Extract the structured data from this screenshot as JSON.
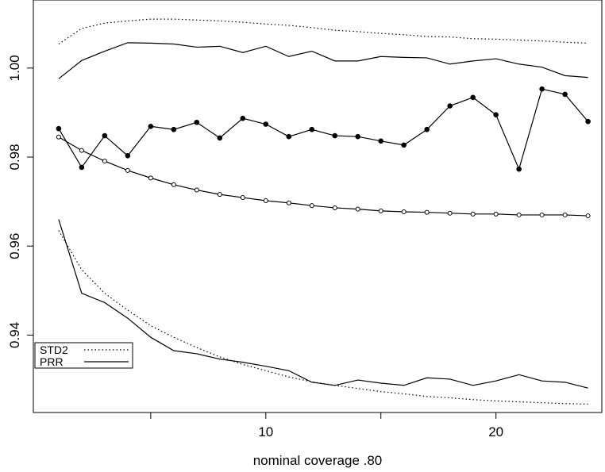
{
  "chart_data": {
    "type": "line",
    "x_label": "nominal coverage .80",
    "x": [
      1,
      2,
      3,
      4,
      5,
      6,
      7,
      8,
      9,
      10,
      11,
      12,
      13,
      14,
      15,
      16,
      17,
      18,
      19,
      20,
      21,
      22,
      23,
      24
    ],
    "xlim": [
      -0.1,
      24.6
    ],
    "xticks": [
      10,
      20
    ],
    "xticks_minor": [
      5,
      15
    ],
    "ylim": [
      0.9226,
      1.0153
    ],
    "yticks": [
      0.94,
      0.96,
      0.98,
      {
        "value": 1,
        "label": "1.00"
      }
    ],
    "legend": "bottom-left",
    "series": [
      {
        "name": "STD2",
        "color": "#000000",
        "dash": "dotted",
        "values": [
          0.9635,
          0.9547,
          0.9494,
          0.9456,
          0.9421,
          0.9395,
          0.9372,
          0.9351,
          0.9334,
          0.932,
          0.9306,
          0.9295,
          0.9287,
          0.928,
          0.9273,
          0.9268,
          0.9262,
          0.9259,
          0.9255,
          0.9252,
          0.925,
          0.9248,
          0.9246,
          0.9245
        ]
      },
      {
        "name": "PRR",
        "color": "#000000",
        "dash": "solid",
        "values": [
          0.966,
          0.9494,
          0.9473,
          0.9438,
          0.9395,
          0.9365,
          0.9358,
          0.9346,
          0.9339,
          0.933,
          0.932,
          0.9294,
          0.9287,
          0.9299,
          0.9292,
          0.9287,
          0.9304,
          0.9301,
          0.9287,
          0.9297,
          0.9311,
          0.9297,
          0.9294,
          0.9281
        ]
      },
      {
        "color": "#000000",
        "dash": "dotted",
        "values": [
          1.0054,
          1.0089,
          1.0101,
          1.0106,
          1.011,
          1.011,
          1.0108,
          1.0106,
          1.0103,
          1.0099,
          1.0096,
          1.0091,
          1.0085,
          1.0082,
          1.0078,
          1.0075,
          1.0071,
          1.007,
          1.0066,
          1.0065,
          1.0063,
          1.0061,
          1.0058,
          1.0056
        ]
      },
      {
        "color": "#000000",
        "dash": "solid",
        "values": [
          0.9976,
          1.0017,
          1.0038,
          1.0057,
          1.0056,
          1.0054,
          1.0047,
          1.0049,
          1.0035,
          1.0049,
          1.0026,
          1.0038,
          1.0016,
          1.0016,
          1.0026,
          1.0024,
          1.0023,
          1.0009,
          1.0016,
          1.0021,
          1.0009,
          1.0002,
          0.9983,
          0.9979
        ]
      },
      {
        "color": "#000000",
        "dash": "solid",
        "marker": "filled",
        "values": [
          0.9864,
          0.9777,
          0.9848,
          0.9803,
          0.9869,
          0.9862,
          0.9878,
          0.9843,
          0.9887,
          0.9874,
          0.9846,
          0.9862,
          0.9848,
          0.9846,
          0.9836,
          0.9827,
          0.9862,
          0.9915,
          0.9934,
          0.9895,
          0.9773,
          0.9953,
          0.9941,
          0.988
        ]
      },
      {
        "color": "#000000",
        "dash": "solid",
        "marker": "open",
        "values": [
          0.9845,
          0.9815,
          0.9791,
          0.977,
          0.9753,
          0.9738,
          0.9726,
          0.9716,
          0.9709,
          0.9702,
          0.9697,
          0.9691,
          0.9686,
          0.9683,
          0.9679,
          0.9677,
          0.9676,
          0.9674,
          0.9672,
          0.9672,
          0.967,
          0.967,
          0.967,
          0.9668
        ]
      }
    ]
  }
}
